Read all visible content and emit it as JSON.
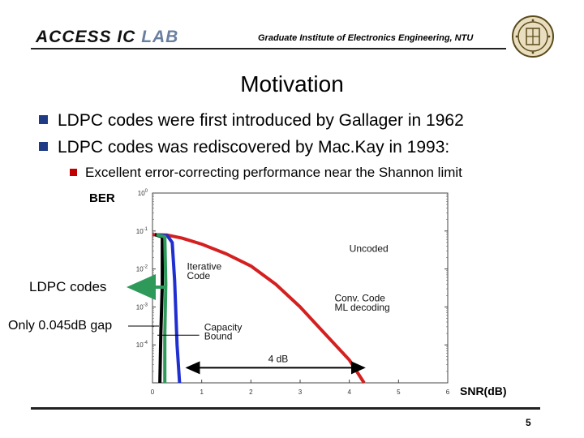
{
  "header": {
    "lab_main": "ACCESS IC ",
    "lab_tail": "LAB",
    "institute": "Graduate Institute of Electronics Engineering, NTU"
  },
  "slide": {
    "title": "Motivation",
    "bullets": [
      "LDPC codes were first introduced by Gallager in 1962",
      "LDPC codes was rediscovered by Mac.Kay in 1993:"
    ],
    "sub_bullet": "Excellent error-correcting performance near the Shannon limit",
    "page_number": "5"
  },
  "labels": {
    "ber": "BER",
    "snr": "SNR(dB)",
    "ldpc": "LDPC codes",
    "gap": "Only 0.045dB gap"
  },
  "colors": {
    "bullet": "#1f3b86",
    "sub_bullet": "#c00000",
    "ldpc_arrow": "#2e9a5a"
  },
  "chart_data": {
    "type": "line",
    "yscale": "log",
    "xlim": [
      0,
      6
    ],
    "ylim": [
      1e-05,
      1
    ],
    "x_ticks": [
      "0",
      "1",
      "2",
      "3",
      "4",
      "5",
      "6"
    ],
    "y_ticks": [
      "10^0",
      "10^-1",
      "10^-2",
      "10^-3",
      "10^-4"
    ],
    "y_tick_values": [
      1,
      0.1,
      0.01,
      0.001,
      0.0001
    ],
    "series": [
      {
        "color": "#d42020",
        "points": [
          [
            0.0,
            0.08
          ],
          [
            0.3,
            0.078
          ],
          [
            0.6,
            0.065
          ],
          [
            1.0,
            0.045
          ],
          [
            1.5,
            0.025
          ],
          [
            2.0,
            0.012
          ],
          [
            2.5,
            0.004
          ],
          [
            3.0,
            0.001
          ],
          [
            3.5,
            0.0002
          ],
          [
            4.0,
            4e-05
          ],
          [
            4.3,
            1e-05
          ]
        ]
      },
      {
        "color": "#1f2fd0",
        "points": [
          [
            0.05,
            0.08
          ],
          [
            0.3,
            0.075
          ],
          [
            0.4,
            0.05
          ],
          [
            0.45,
            0.005
          ],
          [
            0.5,
            0.0001
          ],
          [
            0.55,
            1e-05
          ]
        ]
      },
      {
        "color": "#000000",
        "points": [
          [
            0.05,
            0.08
          ],
          [
            0.2,
            0.07
          ],
          [
            0.2,
            0.004
          ],
          [
            0.17,
            0.0002
          ],
          [
            0.15,
            1e-05
          ]
        ]
      },
      {
        "color": "#2e9a5a",
        "points": [
          [
            0.08,
            0.08
          ],
          [
            0.25,
            0.07
          ],
          [
            0.27,
            0.004
          ],
          [
            0.25,
            0.0002
          ],
          [
            0.25,
            1e-05
          ]
        ]
      }
    ],
    "annotations": [
      {
        "text": "Uncoded",
        "x": 4.0,
        "y": 0.028
      },
      {
        "text": "Iterative",
        "x": 0.7,
        "y": 0.0095
      },
      {
        "text": "Code",
        "x": 0.7,
        "y": 0.0055
      },
      {
        "text": "Conv. Code",
        "x": 3.7,
        "y": 0.0014
      },
      {
        "text": "ML decoding",
        "x": 3.7,
        "y": 0.0008
      },
      {
        "text": "Capacity",
        "x": 1.05,
        "y": 0.00024
      },
      {
        "text": "Bound",
        "x": 1.05,
        "y": 0.00014
      },
      {
        "text": "4 dB",
        "x": 2.35,
        "y": 3.5e-05
      }
    ],
    "dimension_arrow": {
      "x_from": 0.7,
      "x_to": 4.3,
      "y": 2.5e-05
    },
    "capacity_leader": {
      "x_from": 0.1,
      "x_to": 0.95,
      "y": 0.00018
    }
  }
}
